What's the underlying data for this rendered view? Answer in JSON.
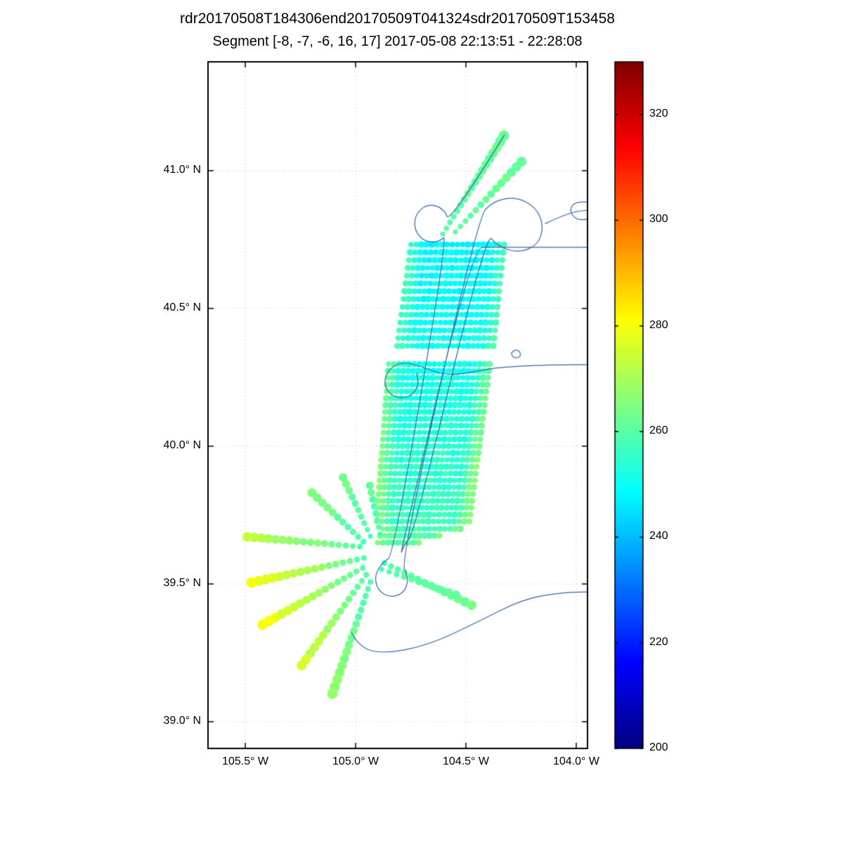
{
  "chart_data": {
    "type": "scatter",
    "title": "rdr20170508T184306end20170509T041324sdr20170509T153458",
    "subtitle": "Segment [-8, -7, -6, 16, 17] 2017-05-08 22:13:51 - 22:28:08",
    "axes": {
      "xlim": [
        -105.669,
        -103.949
      ],
      "ylim": [
        38.903,
        41.395
      ],
      "xticks": [
        -105.5,
        -105.0,
        -104.5,
        -104.0
      ],
      "xtick_labels": [
        "105.5° W",
        "105.0° W",
        "104.5° W",
        "104.0° W"
      ],
      "yticks": [
        39.0,
        39.5,
        40.0,
        40.5,
        41.0
      ],
      "ytick_labels": [
        "39.0° N",
        "39.5° N",
        "40.0° N",
        "40.5° N",
        "41.0° N"
      ],
      "grid": true
    },
    "colorbar": {
      "min": 200,
      "max": 330,
      "ticks": [
        200,
        220,
        240,
        260,
        280,
        300,
        320
      ],
      "colormap": "jet"
    },
    "track_color": "#3465a8",
    "swaths": [
      {
        "name": "upper-swath",
        "lat": [
          40.732,
          40.364
        ],
        "rows": 14,
        "lon_left": [
          -104.749,
          -104.812
        ],
        "lon_right": [
          -104.328,
          -104.376
        ],
        "v_center": [
          248,
          251
        ],
        "v_edge": [
          256,
          258
        ],
        "step": 0.0223,
        "r": 4.3
      },
      {
        "name": "lower-swath",
        "lat": [
          40.298,
          39.727
        ],
        "rows": 24,
        "lon_left": [
          -104.85,
          -104.905
        ],
        "lon_right": [
          -104.392,
          -104.484
        ],
        "v_center": [
          251,
          257
        ],
        "v_edge": [
          261,
          267
        ],
        "step": 0.0223,
        "r": 4.3
      },
      {
        "name": "swath-tail",
        "lat": [
          39.7,
          39.65
        ],
        "rows": 3,
        "lon_left": [
          -104.878,
          -104.9
        ],
        "lon_right": [
          -104.525,
          -104.715
        ],
        "v_center": [
          258,
          260
        ],
        "v_edge": [
          264,
          266
        ],
        "step": 0.0223,
        "r": 4.3
      }
    ],
    "beams": [
      {
        "name": "fan-left-1",
        "from": [
          -104.981,
          39.635
        ],
        "to": [
          -105.491,
          39.671
        ],
        "n": 17,
        "v": [
          260,
          273
        ],
        "r": [
          4,
          7
        ]
      },
      {
        "name": "fan-left-2",
        "from": [
          -104.962,
          39.594
        ],
        "to": [
          -105.472,
          39.505
        ],
        "n": 17,
        "v": [
          260,
          280
        ],
        "r": [
          4,
          7.5
        ]
      },
      {
        "name": "fan-left-3",
        "from": [
          -104.968,
          39.558
        ],
        "to": [
          -105.421,
          39.352
        ],
        "n": 17,
        "v": [
          259,
          281
        ],
        "r": [
          4,
          7.5
        ]
      },
      {
        "name": "fan-down-1",
        "from": [
          -104.952,
          39.533
        ],
        "to": [
          -105.245,
          39.204
        ],
        "n": 16,
        "v": [
          259,
          276
        ],
        "r": [
          4,
          7
        ]
      },
      {
        "name": "fan-down-2",
        "from": [
          -104.933,
          39.507
        ],
        "to": [
          -105.105,
          39.102
        ],
        "n": 17,
        "v": [
          258,
          268
        ],
        "r": [
          4,
          7.5
        ]
      },
      {
        "name": "fan-up-1",
        "from": [
          -104.965,
          39.653
        ],
        "to": [
          -105.198,
          39.831
        ],
        "n": 11,
        "v": [
          258,
          265
        ],
        "r": [
          4,
          6.5
        ]
      },
      {
        "name": "fan-up-2",
        "from": [
          -104.933,
          39.673
        ],
        "to": [
          -105.057,
          39.887
        ],
        "n": 10,
        "v": [
          257,
          264
        ],
        "r": [
          3.5,
          6
        ]
      },
      {
        "name": "fan-up-3",
        "from": [
          -104.889,
          39.681
        ],
        "to": [
          -104.936,
          39.857
        ],
        "n": 8,
        "v": [
          257,
          262
        ],
        "r": [
          3.5,
          5.5
        ]
      },
      {
        "name": "fan-right-1",
        "from": [
          -104.87,
          39.576
        ],
        "to": [
          -104.475,
          39.423
        ],
        "n": 14,
        "v": [
          258,
          264
        ],
        "r": [
          4,
          7
        ]
      },
      {
        "name": "fan-right-2",
        "from": [
          -104.882,
          39.553
        ],
        "to": [
          -104.545,
          39.461
        ],
        "n": 11,
        "v": [
          258,
          262
        ],
        "r": [
          3.5,
          6
        ]
      },
      {
        "name": "ne-beam-1",
        "from": [
          -104.605,
          40.77
        ],
        "to": [
          -104.328,
          41.127
        ],
        "n": 18,
        "v": [
          260,
          263
        ],
        "r": [
          3.5,
          7.5
        ]
      },
      {
        "name": "ne-beam-2",
        "from": [
          -104.548,
          40.778
        ],
        "to": [
          -104.248,
          41.033
        ],
        "n": 14,
        "v": [
          260,
          263
        ],
        "r": [
          3.5,
          7
        ]
      }
    ],
    "track": [
      [
        [
          -104.325,
          41.13
        ],
        [
          -104.573,
          40.808
        ],
        [
          -104.599,
          40.862
        ],
        [
          -104.669,
          40.88
        ],
        [
          -104.726,
          40.847
        ],
        [
          -104.736,
          40.79
        ],
        [
          -104.694,
          40.744
        ],
        [
          -104.624,
          40.739
        ],
        [
          -104.58,
          40.773
        ],
        [
          -104.828,
          39.604
        ],
        [
          -104.876,
          39.579
        ],
        [
          -104.914,
          39.533
        ],
        [
          -104.901,
          39.477
        ],
        [
          -104.841,
          39.449
        ],
        [
          -104.774,
          39.471
        ],
        [
          -104.761,
          39.528
        ],
        [
          -104.796,
          39.579
        ],
        [
          -104.446,
          40.829
        ],
        [
          -104.376,
          40.89
        ],
        [
          -104.274,
          40.905
        ],
        [
          -104.182,
          40.867
        ],
        [
          -104.147,
          40.798
        ],
        [
          -104.175,
          40.729
        ],
        [
          -104.264,
          40.701
        ],
        [
          -104.36,
          40.727
        ],
        [
          -104.408,
          40.778
        ],
        [
          -104.732,
          39.694
        ],
        [
          -104.78,
          39.642
        ],
        [
          -104.803,
          39.591
        ],
        [
          -104.471,
          40.722
        ],
        [
          -104.382,
          40.722
        ],
        [
          -103.94,
          40.722
        ]
      ],
      [
        [
          -103.94,
          40.296
        ],
        [
          -104.318,
          40.296
        ],
        [
          -104.573,
          40.25
        ],
        [
          -104.713,
          40.293
        ],
        [
          -104.793,
          40.306
        ],
        [
          -104.857,
          40.275
        ],
        [
          -104.873,
          40.219
        ],
        [
          -104.828,
          40.176
        ],
        [
          -104.755,
          40.176
        ],
        [
          -104.713,
          40.219
        ],
        [
          -104.723,
          40.265
        ]
      ],
      [
        [
          -105.019,
          39.324
        ],
        [
          -104.981,
          39.267
        ],
        [
          -104.866,
          39.247
        ],
        [
          -104.669,
          39.278
        ],
        [
          -104.446,
          39.362
        ],
        [
          -104.239,
          39.446
        ],
        [
          -104.064,
          39.469
        ],
        [
          -103.94,
          39.471
        ]
      ],
      [
        [
          -104.14,
          40.808
        ],
        [
          -104.032,
          40.849
        ],
        [
          -103.94,
          40.857
        ]
      ],
      [
        [
          -103.94,
          40.885
        ],
        [
          -104.0,
          40.89
        ],
        [
          -104.032,
          40.859
        ],
        [
          -104.006,
          40.824
        ],
        [
          -103.955,
          40.821
        ],
        [
          -103.94,
          40.83
        ]
      ],
      [
        [
          -104.293,
          40.339
        ],
        [
          -104.277,
          40.352
        ],
        [
          -104.255,
          40.344
        ],
        [
          -104.252,
          40.326
        ],
        [
          -104.274,
          40.319
        ],
        [
          -104.293,
          40.329
        ],
        [
          -104.293,
          40.339
        ]
      ]
    ]
  }
}
